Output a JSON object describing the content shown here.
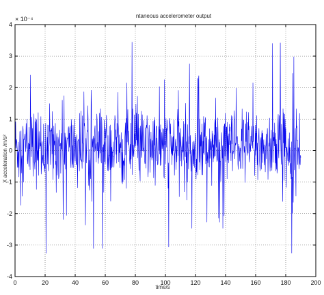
{
  "chart_data": {
    "type": "line",
    "title": "ntaneous accelerometer output",
    "xlabel": "time/s",
    "ylabel": "X acceleration /m/s²",
    "y_exponent_label": "× 10⁻⁴",
    "xlim": [
      0,
      200
    ],
    "ylim": [
      -4,
      4
    ],
    "y_scale": 0.0001,
    "x_ticks": [
      0,
      20,
      40,
      60,
      80,
      100,
      120,
      140,
      160,
      180,
      200
    ],
    "x_tick_labels": [
      "0",
      "20",
      "40",
      "60",
      "80",
      "100",
      "120",
      "140",
      "160",
      "180",
      "200"
    ],
    "y_ticks": [
      -4,
      -3,
      -2,
      -1,
      0,
      1,
      2,
      3,
      4
    ],
    "y_tick_labels": [
      "-4",
      "-3",
      "-2",
      "-1",
      "0",
      "1",
      "2",
      "3",
      "4"
    ],
    "grid": true,
    "series": [
      {
        "color": "#0000ee",
        "x_start": 0,
        "x_end": 190,
        "x_step": 0.2,
        "mean": 0.1,
        "noise_band": 1.3,
        "spike_max": 3.4
      }
    ]
  }
}
